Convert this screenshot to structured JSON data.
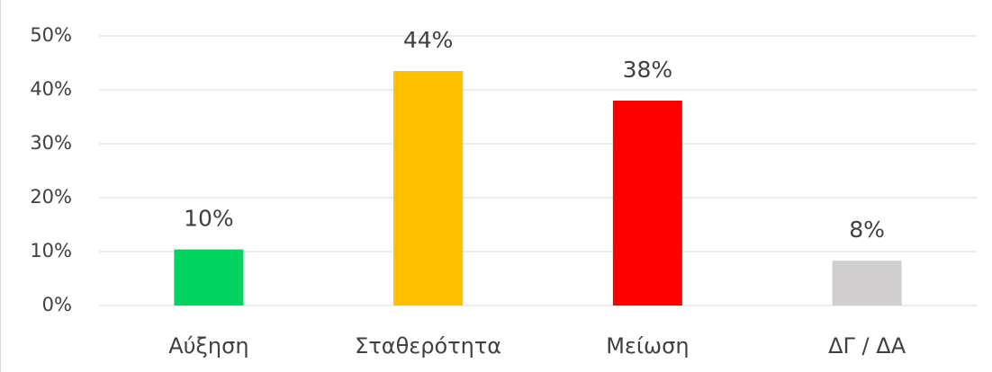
{
  "chart_data": {
    "type": "bar",
    "categories": [
      "Αύξηση",
      "Σταθερότητα",
      "Μείωση",
      "ΔΓ / ΔΑ"
    ],
    "values": [
      10.4,
      43.5,
      38,
      8.3
    ],
    "value_labels": [
      "10%",
      "44%",
      "38%",
      "8%"
    ],
    "colors": [
      "#00d45e",
      "#ffc000",
      "#ff0000",
      "#d0cece"
    ],
    "ylim": [
      0,
      50
    ],
    "yticks": [
      {
        "value": 0,
        "label": "0%"
      },
      {
        "value": 10,
        "label": "10%"
      },
      {
        "value": 20,
        "label": "20%"
      },
      {
        "value": 30,
        "label": "30%"
      },
      {
        "value": 40,
        "label": "40%"
      },
      {
        "value": 50,
        "label": "50%"
      }
    ],
    "grid": true
  }
}
